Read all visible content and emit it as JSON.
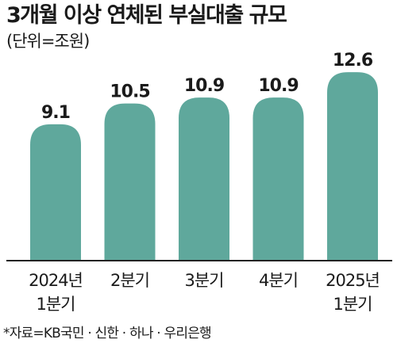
{
  "header": {
    "title": "3개월 이상 연체된 부실대출 규모",
    "unit": "(단위=조원)"
  },
  "footer": {
    "source": "*자료=KB국민 · 신한 · 하나 · 우리은행"
  },
  "colors": {
    "bar": "#5fa89c",
    "axis": "#222222"
  },
  "chart_data": {
    "type": "bar",
    "categories": [
      [
        "2024년",
        "1분기"
      ],
      [
        "2분기"
      ],
      [
        "3분기"
      ],
      [
        "4분기"
      ],
      [
        "2025년",
        "1분기"
      ]
    ],
    "values": [
      9.1,
      10.5,
      10.9,
      10.9,
      12.6
    ],
    "value_labels": [
      "9.1",
      "10.5",
      "10.9",
      "10.9",
      "12.6"
    ],
    "title": "3개월 이상 연체된 부실대출 규모",
    "unit": "(단위=조원)",
    "xlabel": "",
    "ylabel": "",
    "grid": false,
    "legend": "none"
  }
}
